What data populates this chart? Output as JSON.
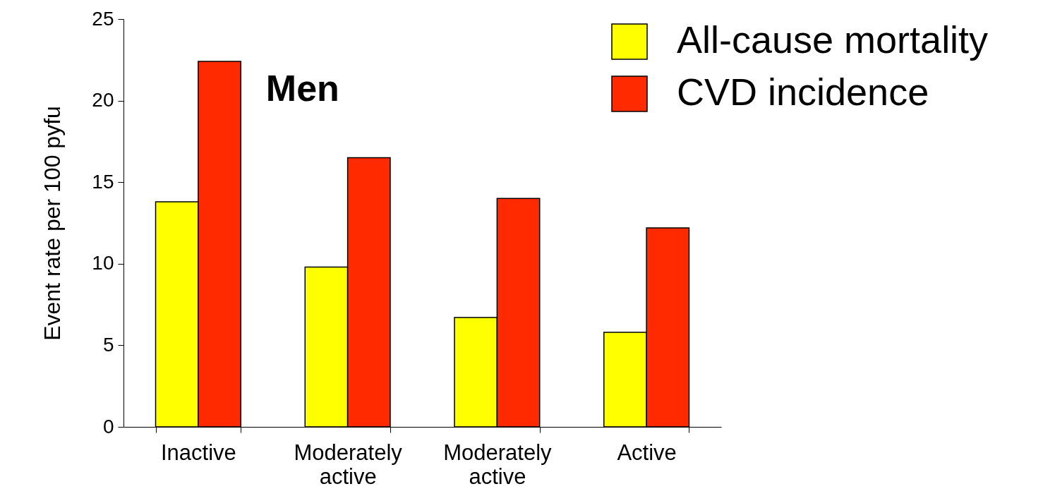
{
  "chart_data": {
    "type": "bar",
    "title": "Men",
    "ylabel": "Event rate per 100 pyfu",
    "categories": [
      "Inactive",
      "Moderately active",
      "Moderately active",
      "Active"
    ],
    "series": [
      {
        "name": "All-cause mortality",
        "color": "#ffff00",
        "values": [
          13.8,
          9.8,
          6.7,
          5.8
        ]
      },
      {
        "name": "CVD incidence",
        "color": "#ff2a00",
        "values": [
          22.4,
          16.5,
          14.0,
          12.2
        ]
      }
    ],
    "ylim": [
      0,
      25
    ],
    "yticks": [
      0,
      5,
      10,
      15,
      20,
      25
    ],
    "grid": false,
    "legend": "top right"
  }
}
